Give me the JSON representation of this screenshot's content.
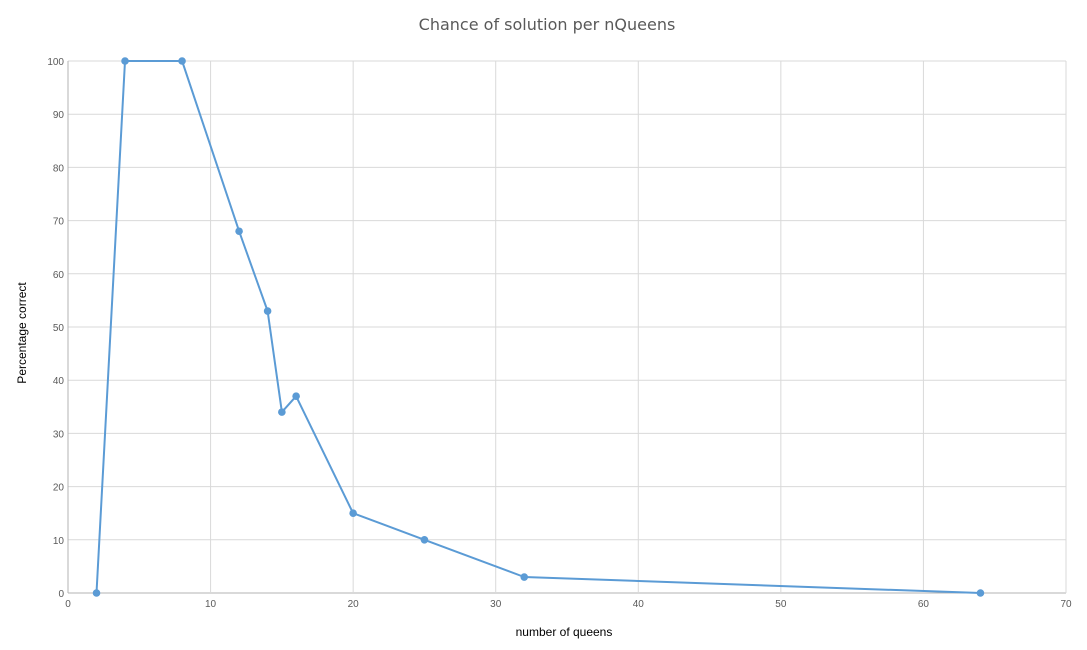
{
  "chart_data": {
    "type": "scatter",
    "title": "Chance of solution per nQueens",
    "xlabel": "number of queens",
    "ylabel": "Percentage correct",
    "xlim": [
      0,
      70
    ],
    "ylim": [
      0,
      100
    ],
    "xticks": [
      0,
      10,
      20,
      30,
      40,
      50,
      60,
      70
    ],
    "yticks": [
      0,
      10,
      20,
      30,
      40,
      50,
      60,
      70,
      80,
      90,
      100
    ],
    "grid": true,
    "legend": "none",
    "series": [
      {
        "color": "#5b9bd5",
        "points": [
          {
            "x": 2,
            "y": 0
          },
          {
            "x": 4,
            "y": 100
          },
          {
            "x": 8,
            "y": 100
          },
          {
            "x": 12,
            "y": 68
          },
          {
            "x": 14,
            "y": 53
          },
          {
            "x": 15,
            "y": 34
          },
          {
            "x": 16,
            "y": 37
          },
          {
            "x": 20,
            "y": 15
          },
          {
            "x": 25,
            "y": 10
          },
          {
            "x": 32,
            "y": 3
          },
          {
            "x": 64,
            "y": 0
          }
        ]
      }
    ]
  }
}
